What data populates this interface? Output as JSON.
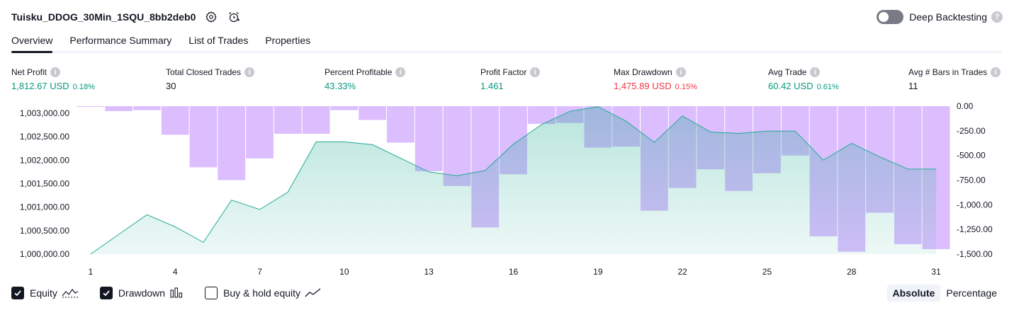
{
  "header": {
    "strategy_title": "Tuisku_DDOG_30Min_1SQU_8bb2deb0",
    "deep_backtesting_label": "Deep Backtesting",
    "help_glyph": "?"
  },
  "tabs": [
    {
      "label": "Overview"
    },
    {
      "label": "Performance Summary"
    },
    {
      "label": "List of Trades"
    },
    {
      "label": "Properties"
    }
  ],
  "stats": [
    {
      "label": "Net Profit",
      "value": "1,812.67 USD",
      "pct": "0.18%",
      "color": "#089981"
    },
    {
      "label": "Total Closed Trades",
      "value": "30",
      "pct": "",
      "color": "#131722"
    },
    {
      "label": "Percent Profitable",
      "value": "43.33%",
      "pct": "",
      "color": "#089981"
    },
    {
      "label": "Profit Factor",
      "value": "1.461",
      "pct": "",
      "color": "#089981"
    },
    {
      "label": "Max Drawdown",
      "value": "1,475.89 USD",
      "pct": "0.15%",
      "color": "#f23645"
    },
    {
      "label": "Avg Trade",
      "value": "60.42 USD",
      "pct": "0.61%",
      "color": "#089981"
    },
    {
      "label": "Avg # Bars in Trades",
      "value": "11",
      "pct": "",
      "color": "#131722"
    }
  ],
  "info_glyph": "i",
  "chart_data": {
    "type": "line",
    "x": [
      1,
      2,
      3,
      4,
      5,
      6,
      7,
      8,
      9,
      10,
      11,
      12,
      13,
      14,
      15,
      16,
      17,
      18,
      19,
      20,
      21,
      22,
      23,
      24,
      25,
      26,
      27,
      28,
      29,
      30,
      31
    ],
    "x_tick_labels": [
      "1",
      "4",
      "7",
      "10",
      "13",
      "16",
      "19",
      "22",
      "25",
      "28",
      "31"
    ],
    "series": [
      {
        "kind": "equity-area",
        "axis": "left",
        "color": "#22ab94",
        "values": [
          1000000,
          1000420,
          1000840,
          1000580,
          1000250,
          1001150,
          1000950,
          1001320,
          1002390,
          1002390,
          1002330,
          1002040,
          1001750,
          1001670,
          1001780,
          1002340,
          1002760,
          1003040,
          1003140,
          1002830,
          1002380,
          1002940,
          1002600,
          1002570,
          1002620,
          1002620,
          1002000,
          1002360,
          1002070,
          1001810,
          1001810
        ]
      },
      {
        "kind": "drawdown-bars",
        "axis": "right",
        "color": "#d6b3ff",
        "values": [
          -5,
          -50,
          -40,
          -290,
          -620,
          -750,
          -530,
          -280,
          -280,
          -40,
          -140,
          -370,
          -660,
          -810,
          -1230,
          -690,
          -180,
          -170,
          -420,
          -410,
          -1060,
          -830,
          -640,
          -860,
          -680,
          -500,
          -1320,
          -1476,
          -1080,
          -1400,
          -1450
        ]
      }
    ],
    "left_axis": {
      "ticks": [
        "1,000,000.00",
        "1,000,500.00",
        "1,001,000.00",
        "1,001,500.00",
        "1,002,000.00",
        "1,002,500.00",
        "1,003,000.00"
      ],
      "ylim": [
        1000000,
        1003150
      ]
    },
    "right_axis": {
      "ticks": [
        "0.00",
        "-250.00",
        "-500.00",
        "-750.00",
        "-1,000.00",
        "-1,250.00",
        "-1,500.00"
      ],
      "ylim": [
        -1500,
        0
      ]
    }
  },
  "legend": {
    "equity_label": "Equity",
    "drawdown_label": "Drawdown",
    "buyhold_label": "Buy & hold equity",
    "absolute_label": "Absolute",
    "percentage_label": "Percentage"
  },
  "colors": {
    "accent": "#089981",
    "negative": "#f23645",
    "equity_line": "#22ab94",
    "drawdown_fill": "#d6b3ff"
  },
  "icons": {
    "settings": "gear-icon",
    "alert": "alarm-clock-icon",
    "equity_legend": "equity-line-icon",
    "drawdown_legend": "bars-icon",
    "buyhold_legend": "trend-line-icon"
  }
}
